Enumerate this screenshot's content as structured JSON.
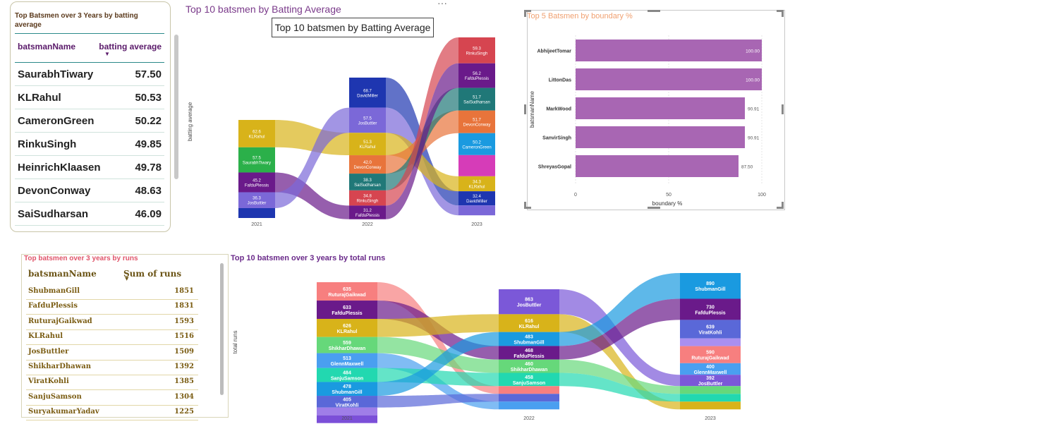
{
  "table1": {
    "title": "Top Batsmen over 3 Years by batting average",
    "col1": "batsmanName",
    "col2": "batting average",
    "rows": [
      {
        "name": "SaurabhTiwary",
        "value": "57.50"
      },
      {
        "name": "KLRahul",
        "value": "50.53"
      },
      {
        "name": "CameronGreen",
        "value": "50.22"
      },
      {
        "name": "RinkuSingh",
        "value": "49.85"
      },
      {
        "name": "HeinrichKlaasen",
        "value": "49.78"
      },
      {
        "name": "DevonConway",
        "value": "48.63"
      },
      {
        "name": "SaiSudharsan",
        "value": "46.09"
      }
    ]
  },
  "ribbon1": {
    "title": "Top 10 batsmen by Batting Average",
    "tooltip": "Top 10 batsmen by Batting Average",
    "ylabel": "batting average",
    "years": [
      "2021",
      "2022",
      "2023"
    ],
    "segments": [
      {
        "year": 0,
        "value": "62.6",
        "name": "KLRahul",
        "color": "#d8b31a"
      },
      {
        "year": 0,
        "value": "57.5",
        "name": "SaurabhTiwary",
        "color": "#2bb04a"
      },
      {
        "year": 0,
        "value": "45.2",
        "name": "FafduPlessis",
        "color": "#6a1a8a"
      },
      {
        "year": 0,
        "value": "36.3",
        "name": "JosButtler",
        "color": "#7b68d8"
      },
      {
        "year": 0,
        "value": "",
        "name": "",
        "color": "#1e36b0"
      },
      {
        "year": 1,
        "value": "68.7",
        "name": "DavidMiller",
        "color": "#1e36b0"
      },
      {
        "year": 1,
        "value": "57.5",
        "name": "JosButtler",
        "color": "#7b68d8"
      },
      {
        "year": 1,
        "value": "51.3",
        "name": "KLRahul",
        "color": "#d8b31a"
      },
      {
        "year": 1,
        "value": "42.0",
        "name": "DevonConway",
        "color": "#e8743b"
      },
      {
        "year": 1,
        "value": "38.3",
        "name": "SaiSudharsan",
        "color": "#207878"
      },
      {
        "year": 1,
        "value": "34.8",
        "name": "RinkuSingh",
        "color": "#d64550"
      },
      {
        "year": 1,
        "value": "31.2",
        "name": "FafduPlessis",
        "color": "#6a1a8a"
      },
      {
        "year": 2,
        "value": "59.3",
        "name": "RinkuSingh",
        "color": "#d64550"
      },
      {
        "year": 2,
        "value": "56.2",
        "name": "FafduPlessis",
        "color": "#6a1a8a"
      },
      {
        "year": 2,
        "value": "51.7",
        "name": "SaiSudharsan",
        "color": "#207878"
      },
      {
        "year": 2,
        "value": "51.7",
        "name": "DevonConway",
        "color": "#e8743b"
      },
      {
        "year": 2,
        "value": "50.2",
        "name": "CameronGreen",
        "color": "#1a9ae0"
      },
      {
        "year": 2,
        "value": "",
        "name": "",
        "color": "#d63cb8"
      },
      {
        "year": 2,
        "value": "34.3",
        "name": "KLRahul",
        "color": "#d8b31a"
      },
      {
        "year": 2,
        "value": "32.4",
        "name": "DavidMiller",
        "color": "#1e36b0"
      },
      {
        "year": 2,
        "value": "",
        "name": "",
        "color": "#7b68d8"
      }
    ]
  },
  "chart_data": [
    {
      "type": "bar",
      "title": "Top 5 Batsmen by boundary %",
      "xlabel": "boundary %",
      "ylabel": "batsmanName",
      "categories": [
        "AbhijeetTomar",
        "LittonDas",
        "MarkWood",
        "SanvirSingh",
        "ShreyasGopal"
      ],
      "values": [
        100.0,
        100.0,
        90.91,
        90.91,
        87.5
      ],
      "value_labels": [
        "100.00",
        "100.00",
        "90.91",
        "90.91",
        "87.50"
      ],
      "xlim": [
        0,
        100
      ],
      "xticks": [
        "0",
        "50",
        "100"
      ],
      "orientation": "horizontal",
      "color": "#a866b3"
    },
    {
      "type": "table",
      "title": "Top batsmen over 3 years by runs",
      "columns": [
        "batsmanName",
        "Sum of runs"
      ],
      "rows": [
        [
          "ShubmanGill",
          "1851"
        ],
        [
          "FafduPlessis",
          "1831"
        ],
        [
          "RuturajGaikwad",
          "1593"
        ],
        [
          "KLRahul",
          "1516"
        ],
        [
          "JosButtler",
          "1509"
        ],
        [
          "ShikharDhawan",
          "1392"
        ],
        [
          "ViratKohli",
          "1385"
        ],
        [
          "SanjuSamson",
          "1304"
        ],
        [
          "SuryakumarYadav",
          "1225"
        ]
      ]
    }
  ],
  "ribbon2": {
    "title": "Top 10 batsmen over 3 years by total runs",
    "ylabel": "total runs",
    "years": [
      "2021",
      "2022",
      "2023"
    ],
    "segments": [
      {
        "year": 0,
        "value": "635",
        "name": "RuturajGaikwad",
        "color": "#f77f7f"
      },
      {
        "year": 0,
        "value": "633",
        "name": "FafduPlessis",
        "color": "#6a1a8a"
      },
      {
        "year": 0,
        "value": "626",
        "name": "KLRahul",
        "color": "#d8b31a"
      },
      {
        "year": 0,
        "value": "559",
        "name": "ShikharDhawan",
        "color": "#66d87a"
      },
      {
        "year": 0,
        "value": "513",
        "name": "GlennMaxwell",
        "color": "#4a9ff0"
      },
      {
        "year": 0,
        "value": "484",
        "name": "SanjuSamson",
        "color": "#22d8b0"
      },
      {
        "year": 0,
        "value": "478",
        "name": "ShubmanGill",
        "color": "#1a9ae0"
      },
      {
        "year": 0,
        "value": "405",
        "name": "ViratKohli",
        "color": "#5a68d8"
      },
      {
        "year": 0,
        "value": "",
        "name": "",
        "color": "#9f7ee8"
      },
      {
        "year": 0,
        "value": "",
        "name": "",
        "color": "#7b4fd8"
      },
      {
        "year": 1,
        "value": "863",
        "name": "JosButtler",
        "color": "#7b58d8"
      },
      {
        "year": 1,
        "value": "616",
        "name": "KLRahul",
        "color": "#d8b31a"
      },
      {
        "year": 1,
        "value": "483",
        "name": "ShubmanGill",
        "color": "#1a9ae0"
      },
      {
        "year": 1,
        "value": "468",
        "name": "FafduPlessis",
        "color": "#6a1a8a"
      },
      {
        "year": 1,
        "value": "460",
        "name": "ShikharDhawan",
        "color": "#66d87a"
      },
      {
        "year": 1,
        "value": "458",
        "name": "SanjuSamson",
        "color": "#22d8b0"
      },
      {
        "year": 1,
        "value": "",
        "name": "",
        "color": "#f77f7f"
      },
      {
        "year": 1,
        "value": "",
        "name": "",
        "color": "#5a68d8"
      },
      {
        "year": 1,
        "value": "",
        "name": "",
        "color": "#4a9ff0"
      },
      {
        "year": 2,
        "value": "890",
        "name": "ShubmanGill",
        "color": "#1a9ae0"
      },
      {
        "year": 2,
        "value": "730",
        "name": "FafduPlessis",
        "color": "#6a1a8a"
      },
      {
        "year": 2,
        "value": "639",
        "name": "ViratKohli",
        "color": "#5a68d8"
      },
      {
        "year": 2,
        "value": "",
        "name": "",
        "color": "#a98ff0"
      },
      {
        "year": 2,
        "value": "590",
        "name": "RuturajGaikwad",
        "color": "#f77f7f"
      },
      {
        "year": 2,
        "value": "400",
        "name": "GlennMaxwell",
        "color": "#4a9ff0"
      },
      {
        "year": 2,
        "value": "392",
        "name": "JosButtler",
        "color": "#7b58d8"
      },
      {
        "year": 2,
        "value": "",
        "name": "",
        "color": "#66d87a"
      },
      {
        "year": 2,
        "value": "",
        "name": "",
        "color": "#22d8b0"
      },
      {
        "year": 2,
        "value": "",
        "name": "",
        "color": "#d8b31a"
      }
    ]
  }
}
